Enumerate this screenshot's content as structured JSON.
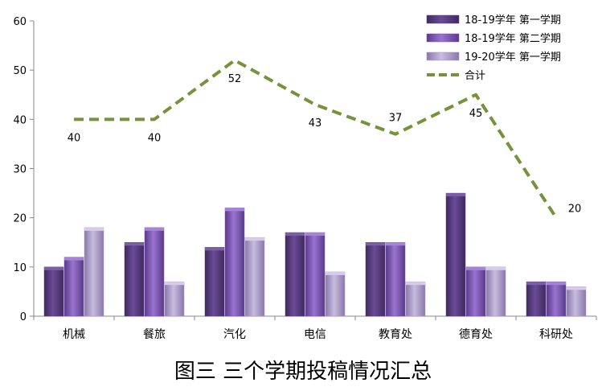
{
  "chart_data": {
    "type": "bar",
    "title": "图三   三个学期投稿情况汇总",
    "categories": [
      "机械",
      "餐旅",
      "汽化",
      "电信",
      "教育处",
      "德育处",
      "科研处"
    ],
    "ylim": [
      0,
      60
    ],
    "yticks": [
      "0",
      "10",
      "20",
      "30",
      "40",
      "50",
      "60"
    ],
    "grid": false,
    "legend_position": "top-right",
    "series": [
      {
        "name": "18-19学年 第一学期",
        "type": "bar",
        "color": "#5a3e82",
        "values": [
          10,
          15,
          14,
          17,
          15,
          25,
          7
        ]
      },
      {
        "name": "18-19学年 第二学期",
        "type": "bar",
        "color": "#7c55b0",
        "values": [
          12,
          18,
          22,
          17,
          15,
          10,
          7
        ]
      },
      {
        "name": "19-20学年 第一学期",
        "type": "bar",
        "color": "#a896c8",
        "values": [
          18,
          7,
          16,
          9,
          7,
          10,
          6
        ]
      },
      {
        "name": "合计",
        "type": "line",
        "style": "dashed",
        "color": "#76923c",
        "values": [
          40,
          40,
          52,
          43,
          37,
          45,
          20
        ]
      }
    ],
    "line_labels": [
      "40",
      "40",
      "52",
      "43",
      "37",
      "45",
      "20"
    ]
  }
}
